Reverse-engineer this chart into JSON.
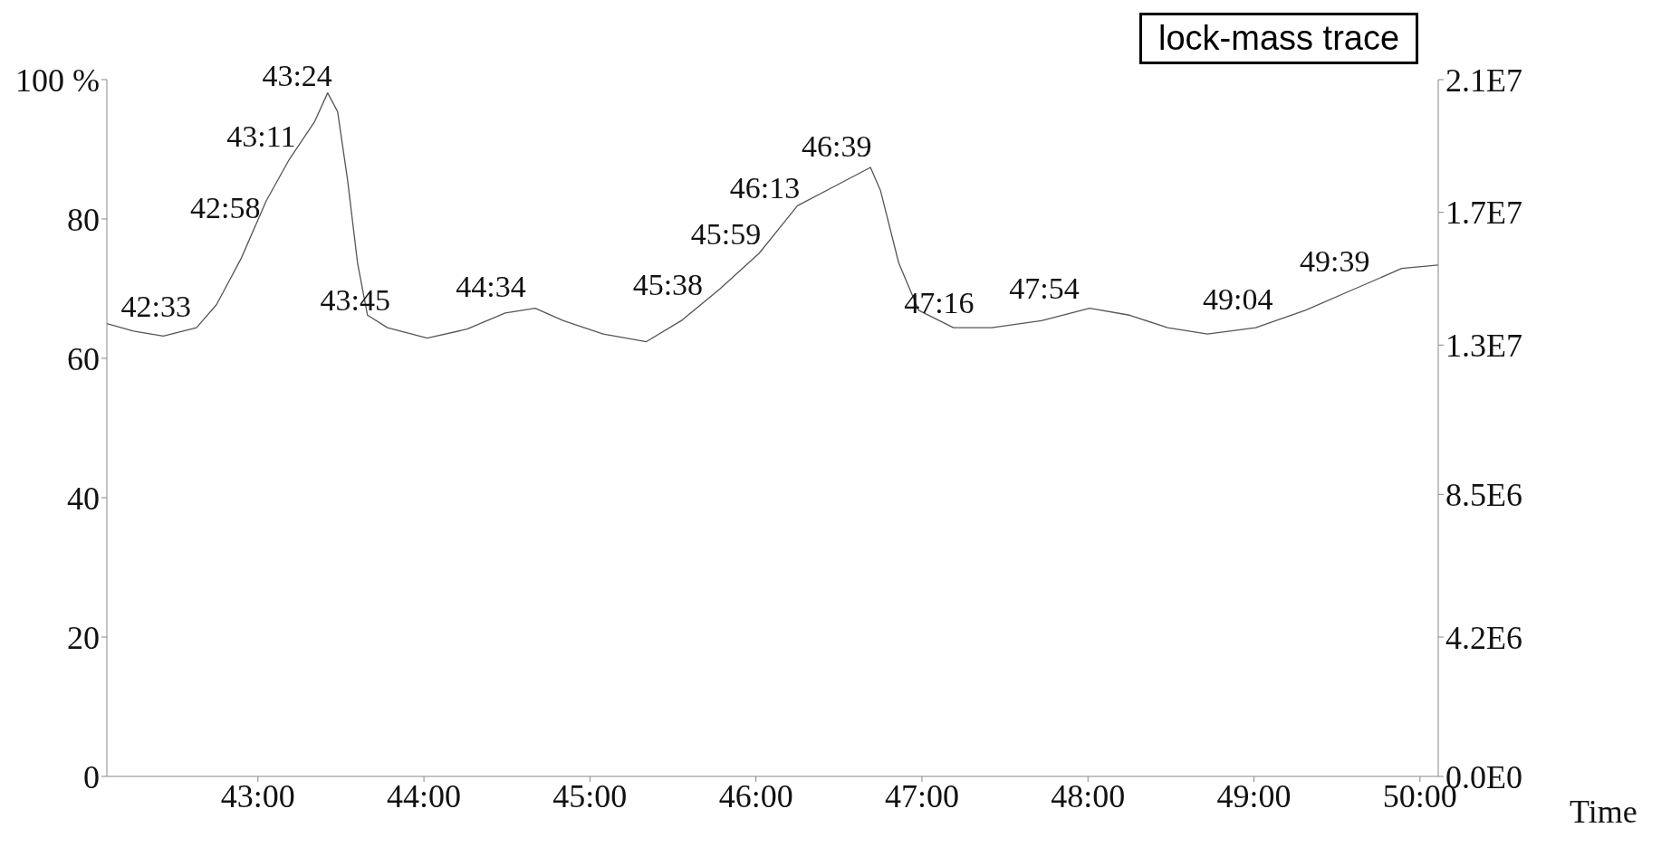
{
  "chart_data": {
    "type": "line",
    "xlabel": "Time",
    "grid": false,
    "marker": "none",
    "line_style": "solid",
    "series": [
      {
        "color": "#555555",
        "x": [
          42.09,
          42.25,
          42.43,
          42.63,
          42.75,
          42.9,
          43.05,
          43.19,
          43.34,
          43.42,
          43.48,
          43.54,
          43.6,
          43.66,
          43.78,
          44.02,
          44.26,
          44.49,
          44.67,
          44.84,
          45.08,
          45.34,
          45.55,
          45.78,
          46.02,
          46.25,
          46.49,
          46.69,
          46.75,
          46.86,
          46.98,
          47.19,
          47.42,
          47.72,
          48.01,
          48.25,
          48.48,
          48.72,
          49.01,
          49.31,
          49.6,
          49.89,
          50.11
        ],
        "values": [
          65,
          63.9,
          63.2,
          64.4,
          67.7,
          74.4,
          82.6,
          88.6,
          93.9,
          98.1,
          95.4,
          85.6,
          73.7,
          66.2,
          64.4,
          62.9,
          64.2,
          66.5,
          67.2,
          65.4,
          63.5,
          62.4,
          65.4,
          69.9,
          75.1,
          81.9,
          84.9,
          87.4,
          84.1,
          73.7,
          66.9,
          64.4,
          64.4,
          65.4,
          67.2,
          66.2,
          64.4,
          63.5,
          64.4,
          66.9,
          69.9,
          72.9,
          73.4
        ]
      }
    ],
    "xlim": [
      42.09,
      50.11
    ],
    "xticks": [
      {
        "value": 43,
        "label": "43:00"
      },
      {
        "value": 44,
        "label": "44:00"
      },
      {
        "value": 45,
        "label": "45:00"
      },
      {
        "value": 46,
        "label": "46:00"
      },
      {
        "value": 47,
        "label": "47:00"
      },
      {
        "value": 48,
        "label": "48:00"
      },
      {
        "value": 49,
        "label": "49:00"
      },
      {
        "value": 50,
        "label": "50:00"
      }
    ],
    "ylim": [
      0,
      100
    ],
    "yticks": [
      0,
      20,
      40,
      60,
      80,
      {
        "value": 100,
        "label": "100 %"
      }
    ],
    "y2lim": [
      0,
      21000000
    ],
    "y2ticks": [
      {
        "value": 0,
        "label": "0.0E0"
      },
      {
        "value": 4200000,
        "label": "4.2E6"
      },
      {
        "value": 8500000,
        "label": "8.5E6"
      },
      {
        "value": 13000000,
        "label": "1.3E7"
      },
      {
        "value": 17000000,
        "label": "1.7E7"
      },
      {
        "value": 21000000,
        "label": "2.1E7"
      }
    ],
    "annotations": [
      "lock-mass trace",
      {
        "text": "42:33",
        "x": 42.55,
        "y": 63.9
      },
      {
        "text": "42:58",
        "x": 42.967,
        "y": 78.1
      },
      {
        "text": "43:11",
        "x": 43.183,
        "y": 88.3
      },
      {
        "text": "43:24",
        "x": 43.4,
        "y": 97
      },
      {
        "text": "43:45",
        "x": 43.75,
        "y": 64.8
      },
      {
        "text": "44:34",
        "x": 44.567,
        "y": 66.8
      },
      {
        "text": "45:38",
        "x": 45.633,
        "y": 67
      },
      {
        "text": "45:59",
        "x": 45.983,
        "y": 74.3
      },
      {
        "text": "46:13",
        "x": 46.217,
        "y": 80.9
      },
      {
        "text": "46:39",
        "x": 46.65,
        "y": 86.9
      },
      {
        "text": "47:16",
        "x": 47.267,
        "y": 64.4
      },
      {
        "text": "47:54",
        "x": 47.9,
        "y": 66.5
      },
      {
        "text": "49:04",
        "x": 49.067,
        "y": 64.9
      },
      {
        "text": "49:39",
        "x": 49.65,
        "y": 70.4
      }
    ]
  }
}
